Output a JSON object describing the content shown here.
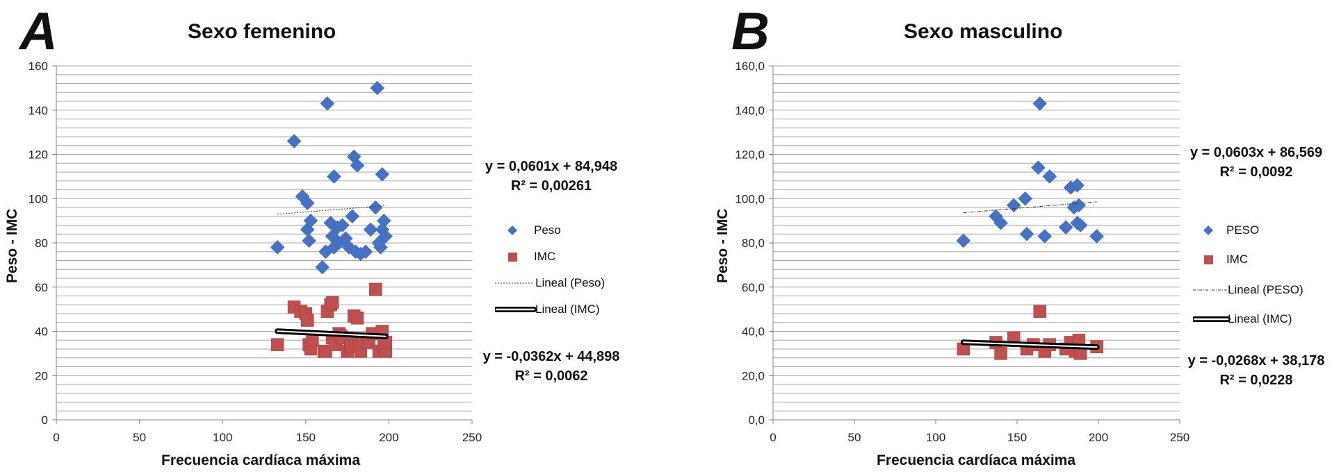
{
  "chart_data": [
    {
      "panel_letter": "A",
      "type": "scatter",
      "title": "Sexo femenino",
      "xlabel": "Frecuencia cardíaca máxima",
      "ylabel": "Peso - IMC",
      "xlim": [
        0,
        250
      ],
      "ylim": [
        0,
        160
      ],
      "x_ticks": [
        "0",
        "50",
        "100",
        "150",
        "200",
        "250"
      ],
      "y_ticks": [
        "0",
        "20",
        "40",
        "60",
        "80",
        "100",
        "120",
        "140",
        "160"
      ],
      "minor_grid_step": 4,
      "grid": true,
      "legend_position": "right",
      "series": [
        {
          "name": "Peso",
          "marker": "diamond",
          "color": "#4472C4",
          "points": [
            [
              133,
              78
            ],
            [
              143,
              126
            ],
            [
              148,
              101
            ],
            [
              151,
              98
            ],
            [
              151,
              86
            ],
            [
              152,
              81
            ],
            [
              153,
              90
            ],
            [
              160,
              69
            ],
            [
              162,
              76
            ],
            [
              163,
              143
            ],
            [
              165,
              89
            ],
            [
              166,
              83
            ],
            [
              167,
              110
            ],
            [
              167,
              78
            ],
            [
              169,
              87
            ],
            [
              170,
              80
            ],
            [
              172,
              88
            ],
            [
              174,
              82
            ],
            [
              176,
              78
            ],
            [
              178,
              92
            ],
            [
              179,
              119
            ],
            [
              180,
              76
            ],
            [
              181,
              115
            ],
            [
              183,
              75
            ],
            [
              186,
              76
            ],
            [
              189,
              86
            ],
            [
              192,
              96
            ],
            [
              193,
              150
            ],
            [
              195,
              78
            ],
            [
              196,
              111
            ],
            [
              197,
              90
            ],
            [
              198,
              83
            ],
            [
              196,
              86
            ],
            [
              194,
              80
            ]
          ]
        },
        {
          "name": "IMC",
          "marker": "square",
          "color": "#C0504D",
          "points": [
            [
              133,
              34
            ],
            [
              143,
              51
            ],
            [
              147,
              49
            ],
            [
              150,
              48
            ],
            [
              151,
              45
            ],
            [
              152,
              34
            ],
            [
              153,
              32
            ],
            [
              154,
              36
            ],
            [
              161,
              31
            ],
            [
              162,
              31
            ],
            [
              163,
              49
            ],
            [
              165,
              52
            ],
            [
              166,
              53
            ],
            [
              166,
              37
            ],
            [
              168,
              34
            ],
            [
              170,
              39
            ],
            [
              171,
              38
            ],
            [
              172,
              37
            ],
            [
              175,
              31
            ],
            [
              177,
              33
            ],
            [
              178,
              34
            ],
            [
              179,
              47
            ],
            [
              180,
              35
            ],
            [
              181,
              46
            ],
            [
              182,
              33
            ],
            [
              183,
              31
            ],
            [
              184,
              36
            ],
            [
              188,
              35
            ],
            [
              190,
              39
            ],
            [
              192,
              59
            ],
            [
              194,
              31
            ],
            [
              196,
              40
            ],
            [
              197,
              33
            ],
            [
              198,
              31
            ],
            [
              198,
              35
            ]
          ]
        }
      ],
      "trendlines": [
        {
          "name": "Lineal (Peso)",
          "series": "Peso",
          "style": "dotted",
          "x_range": [
            133,
            198
          ],
          "slope": 0.0601,
          "intercept": 84.948
        },
        {
          "name": "Lineal (IMC)",
          "series": "IMC",
          "style": "thick-double",
          "x_range": [
            133,
            198
          ],
          "slope": -0.0362,
          "intercept": 44.898
        }
      ],
      "annotations": {
        "peso_eq": "y = 0,0601x + 84,948",
        "peso_r2": "R² = 0,00261",
        "imc_eq": "y = -0,0362x + 44,898",
        "imc_r2": "R² = 0,0062"
      }
    },
    {
      "panel_letter": "B",
      "type": "scatter",
      "title": "Sexo masculino",
      "xlabel": "Frecuencia cardíaca máxima",
      "ylabel": "Peso - IMC",
      "xlim": [
        0,
        250
      ],
      "ylim": [
        0,
        160
      ],
      "x_ticks": [
        "0",
        "50",
        "100",
        "150",
        "200",
        "250"
      ],
      "y_ticks": [
        "0,0",
        "20,0",
        "40,0",
        "60,0",
        "80,0",
        "100,0",
        "120,0",
        "140,0",
        "160,0"
      ],
      "minor_grid_step": 4,
      "grid": true,
      "legend_position": "right",
      "series": [
        {
          "name": "PESO",
          "marker": "diamond",
          "color": "#4472C4",
          "points": [
            [
              117,
              81
            ],
            [
              137,
              92
            ],
            [
              140,
              89
            ],
            [
              148,
              97
            ],
            [
              155,
              100
            ],
            [
              156,
              84
            ],
            [
              163,
              114
            ],
            [
              164,
              143
            ],
            [
              167,
              83
            ],
            [
              170,
              110
            ],
            [
              180,
              87
            ],
            [
              183,
              105
            ],
            [
              185,
              96
            ],
            [
              187,
              89
            ],
            [
              187,
              106
            ],
            [
              188,
              97
            ],
            [
              189,
              88
            ],
            [
              199,
              83
            ]
          ]
        },
        {
          "name": "IMC",
          "marker": "square",
          "color": "#C0504D",
          "points": [
            [
              117,
              32
            ],
            [
              137,
              35
            ],
            [
              140,
              30
            ],
            [
              148,
              37
            ],
            [
              156,
              32
            ],
            [
              160,
              34
            ],
            [
              164,
              49
            ],
            [
              167,
              31
            ],
            [
              170,
              34
            ],
            [
              180,
              32
            ],
            [
              183,
              35
            ],
            [
              186,
              31
            ],
            [
              187,
              34
            ],
            [
              188,
              36
            ],
            [
              189,
              30
            ],
            [
              199,
              33
            ]
          ]
        }
      ],
      "trendlines": [
        {
          "name": "Lineal (PESO)",
          "series": "PESO",
          "style": "dash-dot",
          "x_range": [
            117,
            199
          ],
          "slope": 0.0603,
          "intercept": 86.569
        },
        {
          "name": "Lineal (IMC)",
          "series": "IMC",
          "style": "thick-double",
          "x_range": [
            117,
            199
          ],
          "slope": -0.0268,
          "intercept": 38.178
        }
      ],
      "annotations": {
        "peso_eq": "y = 0,0603x + 86,569",
        "peso_r2": "R² = 0,0092",
        "imc_eq": "y = -0,0268x + 38,178",
        "imc_r2": "R² = 0,0228"
      }
    }
  ]
}
